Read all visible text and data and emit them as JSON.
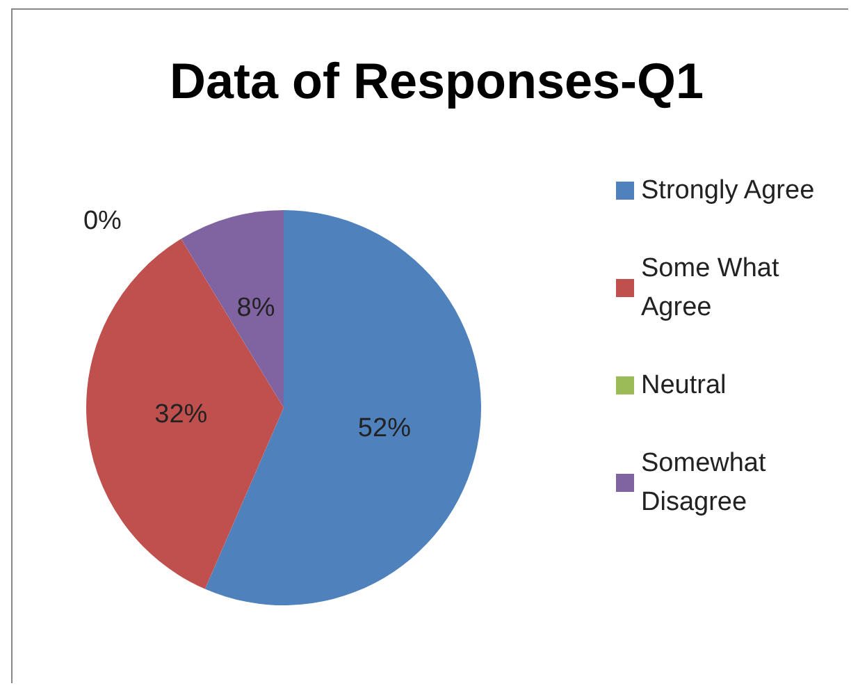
{
  "chart_data": {
    "type": "pie",
    "title": "Data of Responses-Q1",
    "categories": [
      "Strongly Agree",
      "Some What Agree",
      "Neutral",
      "Somewhat Disagree"
    ],
    "values": [
      52,
      32,
      0,
      8
    ],
    "value_labels": [
      "52%",
      "32%",
      "0%",
      "8%"
    ],
    "colors": [
      "#4f81bd",
      "#c0504d",
      "#9bbb59",
      "#8064a2"
    ],
    "legend": "right"
  }
}
